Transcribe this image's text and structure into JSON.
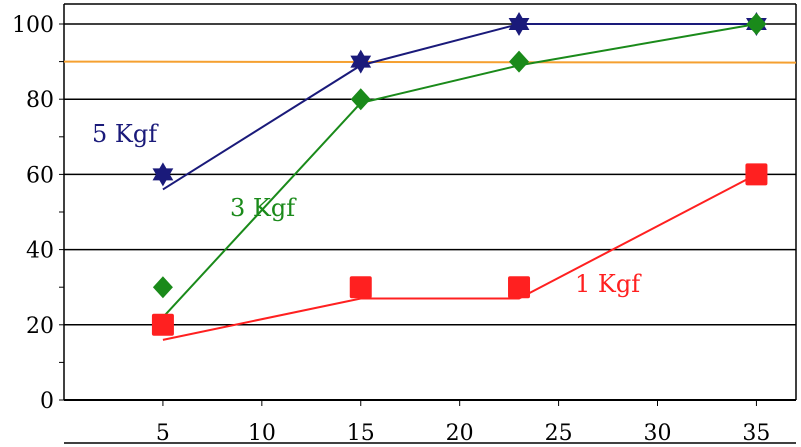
{
  "chart_data": {
    "type": "line",
    "title": "",
    "xlabel": "",
    "ylabel": "",
    "xlim": [
      0,
      37
    ],
    "ylim": [
      0,
      100
    ],
    "x_ticks": [
      "5",
      "10",
      "15",
      "20",
      "25",
      "30",
      "35"
    ],
    "x_tick_values": [
      5,
      10,
      15,
      20,
      25,
      30,
      35
    ],
    "y_ticks": [
      "0",
      "20",
      "40",
      "60",
      "80",
      "100"
    ],
    "y_tick_values": [
      0,
      20,
      40,
      60,
      80,
      100
    ],
    "grid": "horizontal",
    "reference_line": {
      "y": 90,
      "color": "#f5a030"
    },
    "series": [
      {
        "name": "5 Kgf",
        "color": "#1a1a7a",
        "marker": "star-of-david",
        "x": [
          5,
          15,
          23,
          35
        ],
        "y": [
          60,
          90,
          100,
          100
        ],
        "fit_y": [
          56,
          89,
          100,
          100
        ]
      },
      {
        "name": "3 Kgf",
        "color": "#1a8a1a",
        "marker": "diamond",
        "x": [
          5,
          15,
          23,
          35
        ],
        "y": [
          30,
          80,
          90,
          100
        ],
        "fit_y": [
          22,
          79,
          89,
          100
        ]
      },
      {
        "name": "1 Kgf",
        "color": "#ff2020",
        "marker": "square",
        "x": [
          5,
          15,
          23,
          35
        ],
        "y": [
          20,
          30,
          30,
          60
        ],
        "fit_y": [
          16,
          27,
          27,
          60
        ]
      }
    ]
  }
}
